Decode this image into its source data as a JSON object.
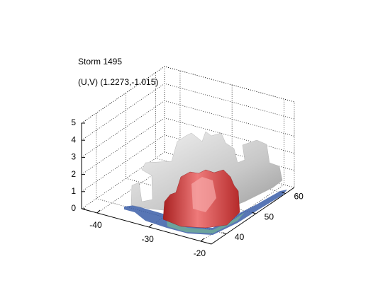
{
  "chart_data": {
    "type": "surface3d",
    "title": "Storm 1495",
    "subtitle": "(U,V) (1.2273,-1.015)",
    "xlim": [
      -43,
      -18
    ],
    "xticks": [
      -40,
      -30,
      -20
    ],
    "ylim": [
      35,
      63
    ],
    "yticks": [
      40,
      50,
      60
    ],
    "zlim": [
      0,
      5
    ],
    "zticks": [
      0,
      1,
      2,
      3,
      4,
      5
    ],
    "grid": true
  }
}
